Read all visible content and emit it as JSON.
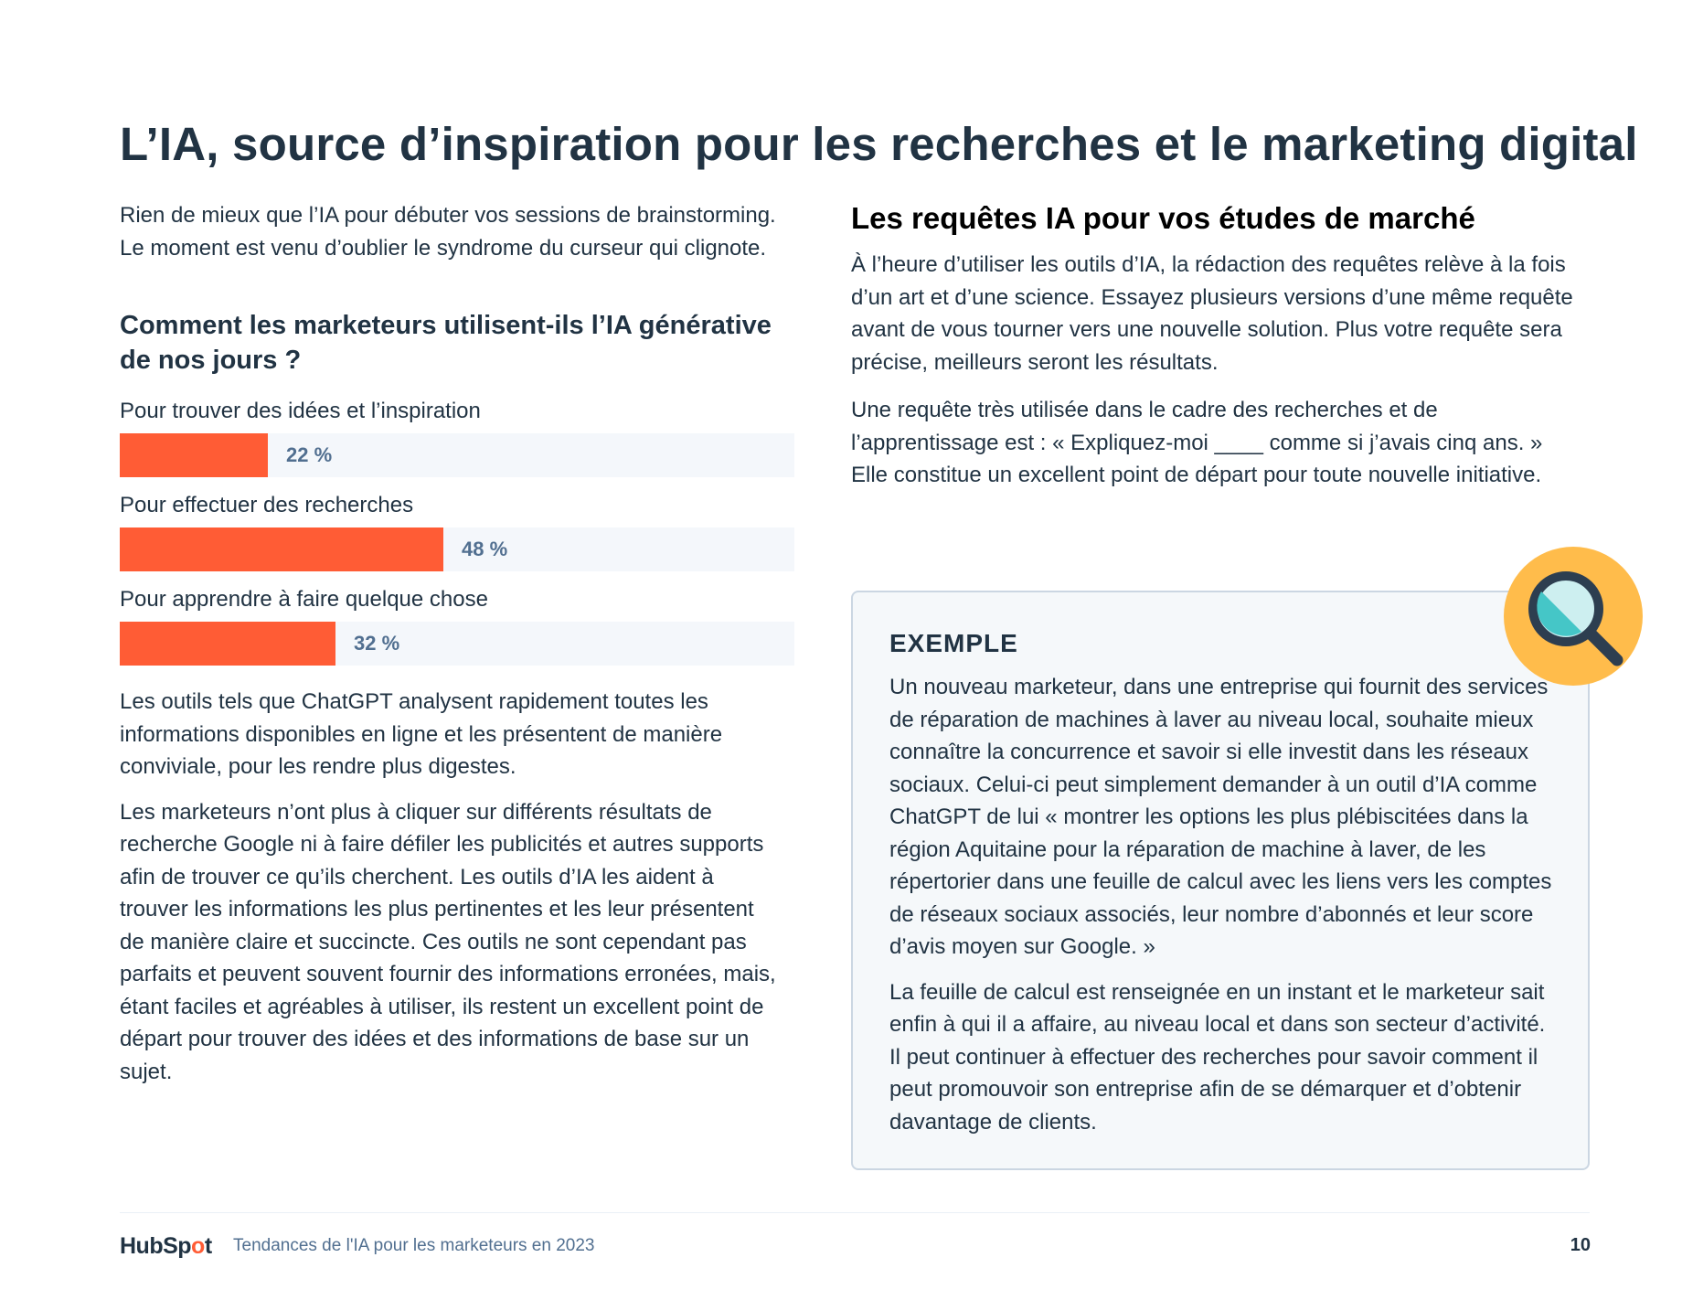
{
  "title": "L’IA, source d’inspiration pour les recherches et le marketing digital",
  "left": {
    "intro": "Rien de mieux que l’IA pour débuter vos sessions de brainstorming. Le moment est venu d’oublier le syndrome du curseur qui clignote.",
    "para1": "Les outils tels que ChatGPT analysent rapidement toutes les informations disponibles en ligne et les présentent de manière conviviale, pour les rendre plus digestes.",
    "para2": "Les marketeurs n’ont plus à cliquer sur différents résultats de recherche Google ni à faire défiler les publicités et autres supports afin de trouver ce qu’ils cherchent. Les outils d’IA les aident à trouver les informations les plus pertinentes et les leur présentent de manière claire et succincte. Ces outils ne sont cependant pas parfaits et peuvent souvent fournir des informations erronées, mais, étant faciles et agréables à utiliser, ils restent un excellent point de départ pour trouver des idées et des informations de base sur un sujet."
  },
  "chart_data": {
    "type": "bar",
    "orientation": "horizontal",
    "title": "Comment les marketeurs utilisent-ils l’IA générative de nos jours ?",
    "categories": [
      "Pour trouver des idées et l’inspiration",
      "Pour effectuer des recherches",
      "Pour apprendre à faire quelque chose"
    ],
    "values": [
      22,
      48,
      32
    ],
    "value_labels": [
      "22 %",
      "48 %",
      "32 %"
    ],
    "xlim": [
      0,
      100
    ],
    "unit": "%",
    "bar_color": "#ff5c35",
    "track_color": "#f4f7fb"
  },
  "right": {
    "heading": "Les requêtes IA pour vos études de marché",
    "para1": "À l’heure d’utiliser les outils d’IA, la rédaction des requêtes relève à la fois d’un art et d’une science. Essayez plusieurs versions d’une même requête avant de vous tourner vers une nouvelle solution. Plus votre requête sera précise, meilleurs seront les résultats.",
    "para2": "Une requête très utilisée dans le cadre des recherches et de l’apprentissage est : « Expliquez-moi ____ comme si j’avais cinq ans. » Elle constitue un excellent point de départ pour toute nouvelle initiative."
  },
  "example": {
    "label": "EXEMPLE",
    "para1": "Un nouveau marketeur, dans une entreprise qui fournit des services de réparation de machines à laver au niveau local, souhaite mieux connaître la concurrence et savoir si elle investit dans les réseaux sociaux. Celui-ci peut simplement demander à un outil d’IA comme ChatGPT de lui « montrer les options les plus plébiscitées dans la région Aquitaine pour la réparation de machine à laver, de les répertorier dans une feuille de calcul avec les liens vers les comptes de réseaux sociaux associés, leur nombre d’abonnés et leur score d’avis moyen sur Google. »",
    "para2": "La feuille de calcul est renseignée en un instant et le marketeur sait enfin à qui il a affaire, au niveau local et dans son secteur d’activité. Il peut continuer à effectuer des recherches pour savoir comment il peut promouvoir son entreprise afin de se démarquer et d’obtenir davantage de clients.",
    "icon": "magnifier-icon"
  },
  "footer": {
    "logo_a": "HubSp",
    "logo_dot": "o",
    "logo_b": "t",
    "text": "Tendances de l'IA pour les marketeurs en 2023",
    "page": "10"
  },
  "colors": {
    "ink": "#213343",
    "accent": "#ff5c35",
    "badge": "#ffbc4b",
    "muted": "#516f90"
  }
}
